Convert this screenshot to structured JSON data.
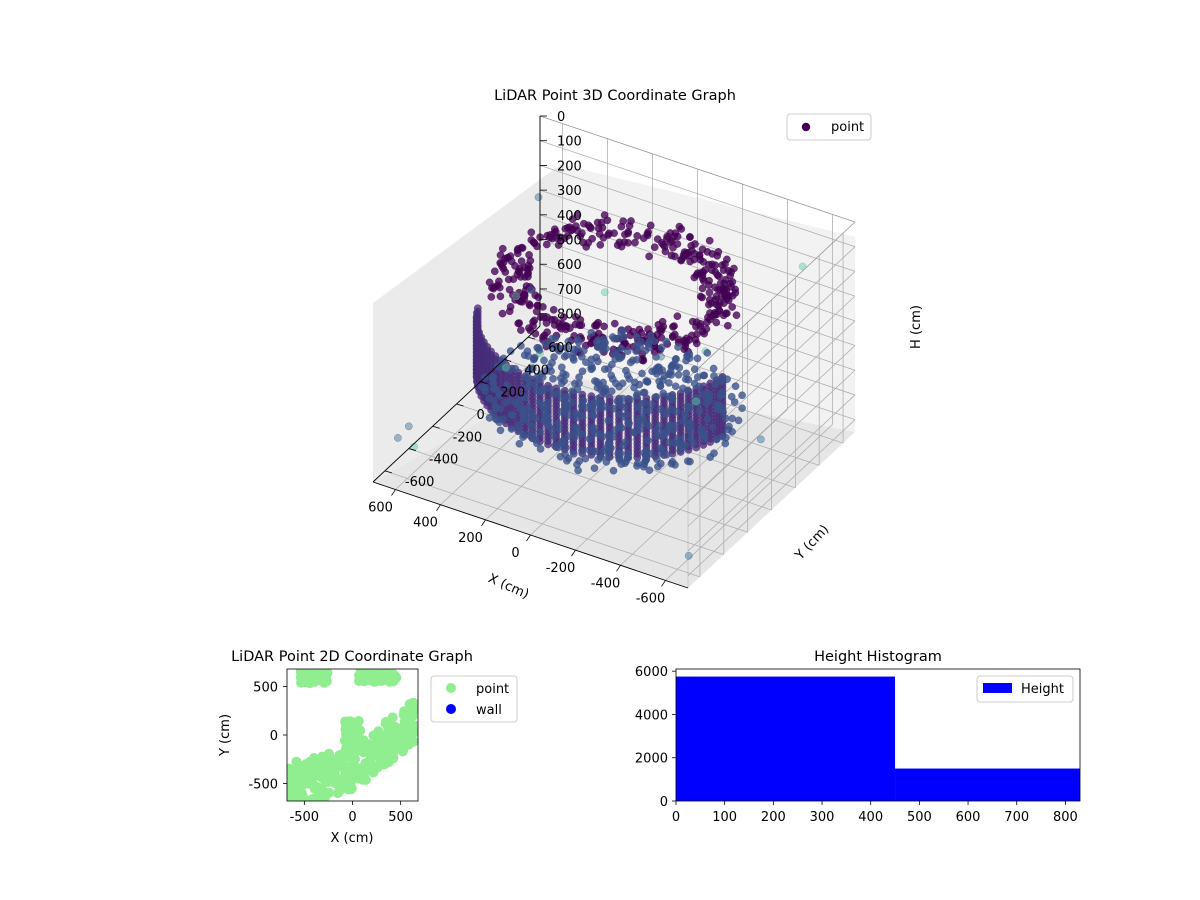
{
  "chart_data": [
    {
      "type": "scatter",
      "projection": "3d",
      "title": "LiDAR Point 3D Coordinate Graph",
      "xlabel": "X (cm)",
      "ylabel": "Y (cm)",
      "zlabel": "H (cm)",
      "xlim": [
        -700,
        700
      ],
      "ylim": [
        -700,
        700
      ],
      "zlim": [
        850,
        0
      ],
      "xticks": [
        -600,
        -400,
        -200,
        0,
        200,
        400,
        600
      ],
      "yticks": [
        -600,
        -400,
        -200,
        0,
        200,
        400,
        600
      ],
      "zticks": [
        0,
        100,
        200,
        300,
        400,
        500,
        600,
        700,
        800
      ],
      "legend": {
        "entries": [
          "point"
        ],
        "placement": "top-right"
      },
      "grid": true,
      "colormap": "viridis",
      "series": [
        {
          "name": "point",
          "color": "#440154",
          "structures": [
            {
              "kind": "ceiling ring",
              "height": 160,
              "radius": 450,
              "theta_deg": [
                -90,
                270
              ]
            },
            {
              "kind": "vertical wall",
              "radius": 540,
              "theta_deg": [
                -170,
                -20
              ],
              "height_range": [
                320,
                560
              ],
              "columns": 40
            },
            {
              "kind": "floor disc",
              "height": 620,
              "radius": 520
            }
          ],
          "outliers": [
            {
              "x": -520,
              "y": 600,
              "h": 190
            },
            {
              "x": -650,
              "y": -600,
              "h": 780
            },
            {
              "x": 680,
              "y": 650,
              "h": 300
            },
            {
              "x": 700,
              "y": -400,
              "h": 760
            },
            {
              "x": -300,
              "y": 200,
              "h": 420
            },
            {
              "x": 250,
              "y": -150,
              "h": 440
            },
            {
              "x": 600,
              "y": -680,
              "h": 650
            },
            {
              "x": 560,
              "y": -620,
              "h": 700
            },
            {
              "x": 640,
              "y": 300,
              "h": 820
            },
            {
              "x": 700,
              "y": 500,
              "h": 640
            },
            {
              "x": -100,
              "y": 500,
              "h": 820
            },
            {
              "x": 120,
              "y": 620,
              "h": 760
            },
            {
              "x": -600,
              "y": 100,
              "h": 640
            },
            {
              "x": -450,
              "y": -250,
              "h": 520
            },
            {
              "x": 200,
              "y": 300,
              "h": 380
            },
            {
              "x": 450,
              "y": 150,
              "h": 380
            }
          ]
        }
      ]
    },
    {
      "type": "scatter",
      "title": "LiDAR Point 2D Coordinate Graph",
      "xlabel": "X (cm)",
      "ylabel": "Y (cm)",
      "xlim": [
        -680,
        680
      ],
      "ylim": [
        -680,
        680
      ],
      "xticks": [
        -500,
        0,
        500
      ],
      "yticks": [
        -500,
        0,
        500
      ],
      "legend": {
        "entries": [
          "point",
          "wall"
        ],
        "placement": "outside-right"
      },
      "series": [
        {
          "name": "point",
          "color": "#90ee90",
          "regions": [
            {
              "shape": "band",
              "x_range": [
                -680,
                680
              ],
              "y_center_at_x": [
                [
                  -650,
                  -500
                ],
                [
                  0,
                  -350
                ],
                [
                  650,
                  150
                ]
              ],
              "half_width": 220
            },
            {
              "shape": "blob",
              "center": [
                -400,
                620
              ],
              "size": [
                280,
                180
              ]
            },
            {
              "shape": "blob",
              "center": [
                250,
                620
              ],
              "size": [
                420,
                150
              ]
            },
            {
              "shape": "blob",
              "center": [
                0,
                0
              ],
              "size": [
                160,
                300
              ]
            }
          ]
        },
        {
          "name": "wall",
          "color": "#0000ff",
          "points": []
        }
      ]
    },
    {
      "type": "bar",
      "chart_subtype": "histogram",
      "title": "Height Histogram",
      "xlabel": "",
      "ylabel": "",
      "xlim": [
        0,
        830
      ],
      "ylim": [
        0,
        6100
      ],
      "xticks": [
        0,
        100,
        200,
        300,
        400,
        500,
        600,
        700,
        800
      ],
      "yticks": [
        0,
        2000,
        4000,
        6000
      ],
      "legend": {
        "entries": [
          "Height"
        ],
        "placement": "top-right"
      },
      "series": [
        {
          "name": "Height",
          "color": "#0000ff",
          "bins": [
            {
              "x0": 0,
              "x1": 450,
              "count": 5750
            },
            {
              "x0": 450,
              "x1": 830,
              "count": 1500
            }
          ]
        }
      ]
    }
  ]
}
